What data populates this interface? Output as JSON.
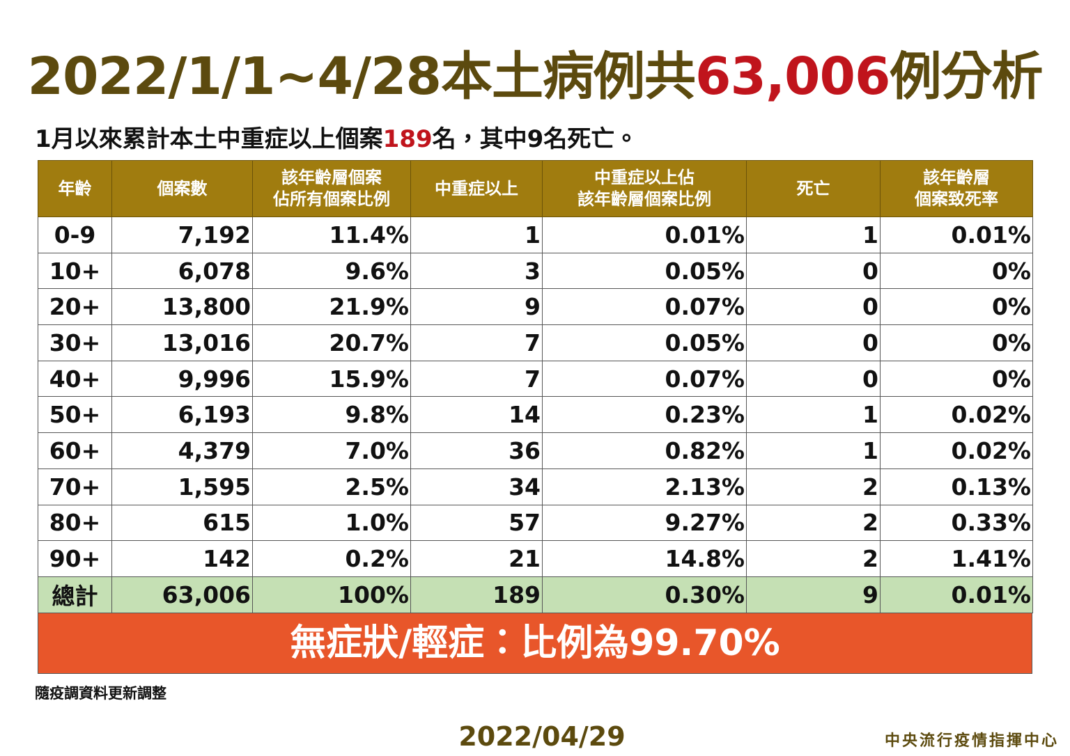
{
  "header": {
    "title": [
      "2022/1/1~4/28本土病例共",
      "63,006",
      "例分析"
    ],
    "subtitle": [
      "1月以來累計本土中重症以上個案",
      "189",
      "名，其中9名死亡。"
    ]
  },
  "table": {
    "columns": [
      [
        "年齡"
      ],
      [
        "個案數"
      ],
      [
        "該年齡層個案",
        "佔所有個案比例"
      ],
      [
        "中重症以上"
      ],
      [
        "中重症以上佔",
        "該年齡層個案比例"
      ],
      [
        "死亡"
      ],
      [
        "該年齡層",
        "個案致死率"
      ]
    ],
    "rows": [
      [
        "0-9",
        "7,192",
        "11.4%",
        "1",
        "0.01%",
        "1",
        "0.01%"
      ],
      [
        "10+",
        "6,078",
        "9.6%",
        "3",
        "0.05%",
        "0",
        "0%"
      ],
      [
        "20+",
        "13,800",
        "21.9%",
        "9",
        "0.07%",
        "0",
        "0%"
      ],
      [
        "30+",
        "13,016",
        "20.7%",
        "7",
        "0.05%",
        "0",
        "0%"
      ],
      [
        "40+",
        "9,996",
        "15.9%",
        "7",
        "0.07%",
        "0",
        "0%"
      ],
      [
        "50+",
        "6,193",
        "9.8%",
        "14",
        "0.23%",
        "1",
        "0.02%"
      ],
      [
        "60+",
        "4,379",
        "7.0%",
        "36",
        "0.82%",
        "1",
        "0.02%"
      ],
      [
        "70+",
        "1,595",
        "2.5%",
        "34",
        "2.13%",
        "2",
        "0.13%"
      ],
      [
        "80+",
        "615",
        "1.0%",
        "57",
        "9.27%",
        "2",
        "0.33%"
      ],
      [
        "90+",
        "142",
        "0.2%",
        "21",
        "14.8%",
        "2",
        "1.41%"
      ]
    ],
    "total": [
      "總計",
      "63,006",
      "100%",
      "189",
      "0.30%",
      "9",
      "0.01%"
    ]
  },
  "banner": "無症狀/輕症：比例為99.70%",
  "footer": {
    "note": "隨疫調資料更新調整",
    "date": "2022/04/29",
    "organization": "中央流行疫情指揮中心"
  }
}
